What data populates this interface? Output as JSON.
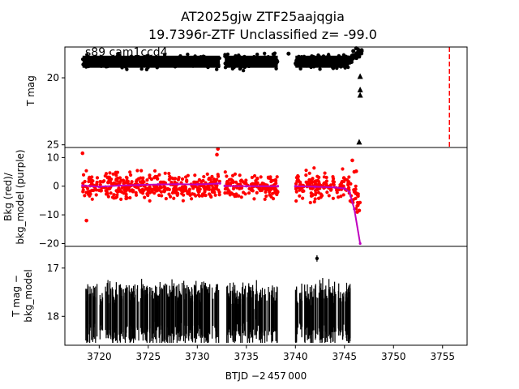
{
  "title_line1": "AT2025gjw  ZTF25aajqgia",
  "title_line2": "19.7396r-ZTF Unclassified z= -99.0",
  "colors": {
    "points": "#000000",
    "bkg": "#ff0000",
    "bkg_model": "#bf00bf",
    "marker": "#ff0000"
  },
  "chart_data": [
    {
      "type": "scatter",
      "panel": "top",
      "ylabel": "T mag",
      "annotation": "s89 cam1ccd4",
      "y_inverted": true,
      "xlim": [
        3716.5,
        3757.5
      ],
      "ylim": [
        25.2,
        17.7
      ],
      "yticks": [
        20,
        25
      ],
      "segments": [
        {
          "x_range": [
            3718.3,
            3732.3
          ],
          "y_center": 18.8,
          "y_spread": 0.45
        },
        {
          "x_range": [
            3732.8,
            3738.2
          ],
          "y_center": 18.8,
          "y_spread": 0.45
        },
        {
          "x_range": [
            3740.0,
            3745.4
          ],
          "y_center": 18.8,
          "y_spread": 0.45
        }
      ],
      "points": [
        {
          "x": 3739.3,
          "y": 18.2
        },
        {
          "x": 3745.9,
          "y": 18.0
        },
        {
          "x": 3746.2,
          "y": 17.8
        },
        {
          "x": 3746.4,
          "y": 17.9
        }
      ],
      "upper_limits": [
        {
          "x": 3746.6,
          "y": 19.9
        },
        {
          "x": 3746.6,
          "y": 20.9
        },
        {
          "x": 3746.6,
          "y": 21.3
        },
        {
          "x": 3746.5,
          "y": 24.8
        }
      ],
      "vline": {
        "x": 3755.7,
        "style": "dashed"
      }
    },
    {
      "type": "scatter",
      "panel": "middle",
      "ylabel": "Bkg (red)/\nbkg_model (purple)",
      "xlim": [
        3716.5,
        3757.5
      ],
      "ylim": [
        -21,
        13.5
      ],
      "yticks": [
        10,
        0,
        -10,
        -20
      ],
      "series": [
        {
          "name": "Bkg (red)",
          "segments": [
            {
              "x_range": [
                3718.3,
                3732.3
              ],
              "spread": 5
            },
            {
              "x_range": [
                3732.8,
                3738.2
              ],
              "spread": 5
            },
            {
              "x_range": [
                3740.0,
                3746.6
              ],
              "spread": 5
            }
          ]
        },
        {
          "name": "bkg_model (purple)",
          "values": [
            [
              3718.3,
              0.2
            ],
            [
              3720.0,
              -0.2
            ],
            [
              3722.0,
              0.2
            ],
            [
              3724.0,
              0.4
            ],
            [
              3726.0,
              0.6
            ],
            [
              3728.0,
              0.7
            ],
            [
              3730.0,
              0.6
            ],
            [
              3732.0,
              0.9
            ],
            [
              3732.3,
              1.0
            ],
            [
              3732.8,
              0.1
            ],
            [
              3735.0,
              0.0
            ],
            [
              3738.2,
              0.0
            ],
            [
              3740.0,
              0.0
            ],
            [
              3742.0,
              -0.2
            ],
            [
              3744.0,
              -0.4
            ],
            [
              3745.0,
              -0.8
            ],
            [
              3745.5,
              -2.0
            ],
            [
              3746.0,
              -8.0
            ],
            [
              3746.6,
              -20.0
            ]
          ]
        }
      ]
    },
    {
      "type": "scatter",
      "panel": "bottom",
      "ylabel": "T mag −\nbkg_model",
      "xlabel": "BTJD −2 457 000",
      "y_inverted": true,
      "xlim": [
        3716.5,
        3757.5
      ],
      "ylim": [
        18.6,
        16.55
      ],
      "yticks": [
        17,
        18
      ],
      "xticks": [
        3720,
        3725,
        3730,
        3735,
        3740,
        3745,
        3750,
        3755
      ],
      "segments": [
        {
          "x_range": [
            3718.5,
            3732.2
          ],
          "y_center": 17.95,
          "y_spread": 0.6
        },
        {
          "x_range": [
            3733.0,
            3738.2
          ],
          "y_center": 17.95,
          "y_spread": 0.6
        },
        {
          "x_range": [
            3740.0,
            3745.6
          ],
          "y_center": 17.95,
          "y_spread": 0.6
        }
      ],
      "points": [
        {
          "x": 3742.2,
          "y": 16.8
        }
      ]
    }
  ]
}
